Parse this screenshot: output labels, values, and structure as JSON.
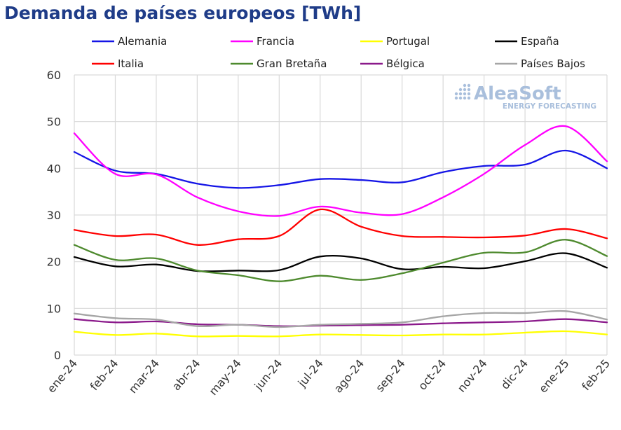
{
  "chart_data": {
    "type": "line",
    "title": "Demanda de países europeos [TWh]",
    "xlabel": "",
    "ylabel": "",
    "ylim": [
      0,
      60
    ],
    "yticks": [
      0,
      10,
      20,
      30,
      40,
      50,
      60
    ],
    "grid": true,
    "legend_position": "top",
    "categories": [
      "ene-24",
      "feb-24",
      "mar-24",
      "abr-24",
      "may-24",
      "jun-24",
      "jul-24",
      "ago-24",
      "sep-24",
      "oct-24",
      "nov-24",
      "dic-24",
      "ene-25",
      "feb-25"
    ],
    "series": [
      {
        "name": "Alemania",
        "color": "#1515e6",
        "values": [
          43.5,
          39.5,
          38.8,
          36.7,
          35.8,
          36.4,
          37.7,
          37.5,
          37.0,
          39.2,
          40.5,
          40.8,
          43.8,
          40.0
        ]
      },
      {
        "name": "Francia",
        "color": "#ff00ff",
        "values": [
          47.5,
          38.8,
          38.7,
          33.8,
          30.8,
          29.8,
          31.8,
          30.5,
          30.2,
          33.8,
          38.8,
          45.0,
          49.0,
          41.5
        ]
      },
      {
        "name": "Portugal",
        "color": "#ffff00",
        "values": [
          5.0,
          4.3,
          4.6,
          4.0,
          4.1,
          4.0,
          4.4,
          4.3,
          4.2,
          4.4,
          4.4,
          4.8,
          5.1,
          4.4
        ]
      },
      {
        "name": "España",
        "color": "#000000",
        "values": [
          21.0,
          19.0,
          19.4,
          18.0,
          18.1,
          18.2,
          21.1,
          20.7,
          18.4,
          18.9,
          18.6,
          20.1,
          21.8,
          18.7
        ]
      },
      {
        "name": "Italia",
        "color": "#ff0000",
        "values": [
          26.8,
          25.5,
          25.8,
          23.6,
          24.8,
          25.5,
          31.2,
          27.5,
          25.5,
          25.3,
          25.2,
          25.6,
          27.0,
          25.0
        ]
      },
      {
        "name": "Gran Bretaña",
        "color": "#4e8a2e",
        "values": [
          23.6,
          20.4,
          20.7,
          18.1,
          17.1,
          15.8,
          17.0,
          16.1,
          17.5,
          19.8,
          21.9,
          22.0,
          24.7,
          21.2
        ]
      },
      {
        "name": "Bélgica",
        "color": "#8b1a8b",
        "values": [
          7.7,
          7.0,
          7.2,
          6.6,
          6.5,
          6.2,
          6.3,
          6.4,
          6.5,
          6.8,
          7.0,
          7.2,
          7.7,
          7.0
        ]
      },
      {
        "name": "Países Bajos",
        "color": "#a6a6a6",
        "values": [
          8.9,
          7.9,
          7.6,
          6.2,
          6.5,
          6.0,
          6.5,
          6.7,
          7.0,
          8.3,
          9.0,
          9.0,
          9.4,
          7.6
        ]
      }
    ]
  },
  "watermark": {
    "brand": "AleaSoft",
    "tagline": "ENERGY FORECASTING",
    "color": "#a9bfdc"
  }
}
